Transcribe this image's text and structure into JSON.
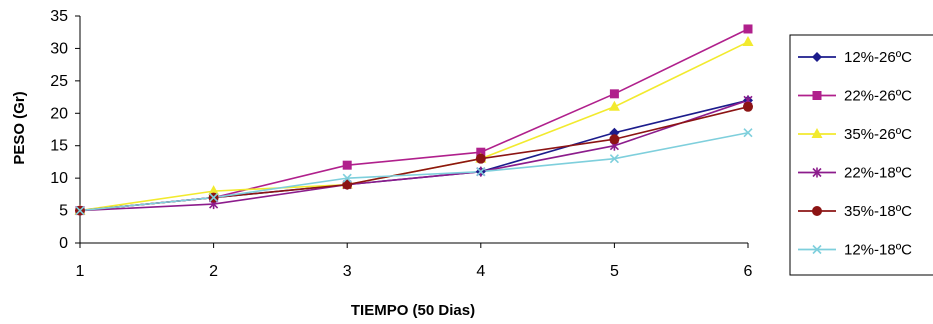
{
  "chart_data": {
    "type": "line",
    "title": "",
    "xlabel": "TIEMPO (50 Dias)",
    "ylabel": "PESO (Gr)",
    "x": [
      1,
      2,
      3,
      4,
      5,
      6
    ],
    "ylim": [
      0,
      35
    ],
    "yticks": [
      0,
      5,
      10,
      15,
      20,
      25,
      30,
      35
    ],
    "grid": false,
    "legend_position": "right",
    "series": [
      {
        "name": "12%-26ºC",
        "color": "#1c1c8c",
        "marker": "diamond",
        "values": [
          5,
          7,
          9,
          11,
          17,
          22
        ]
      },
      {
        "name": "22%-26ºC",
        "color": "#b0208c",
        "marker": "square",
        "values": [
          5,
          7,
          12,
          14,
          23,
          33
        ]
      },
      {
        "name": "35%-26ºC",
        "color": "#f2ea2e",
        "marker": "triangle",
        "values": [
          5,
          8,
          9,
          13,
          21,
          31
        ]
      },
      {
        "name": "22%-18ºC",
        "color": "#8c1c8c",
        "marker": "star",
        "values": [
          5,
          6,
          9,
          11,
          15,
          22
        ]
      },
      {
        "name": "35%-18ºC",
        "color": "#8c1414",
        "marker": "circle",
        "values": [
          5,
          7,
          9,
          13,
          16,
          21
        ]
      },
      {
        "name": "12%-18ºC",
        "color": "#7ecfdc",
        "marker": "x",
        "values": [
          5,
          7,
          10,
          11,
          13,
          17
        ]
      }
    ]
  }
}
